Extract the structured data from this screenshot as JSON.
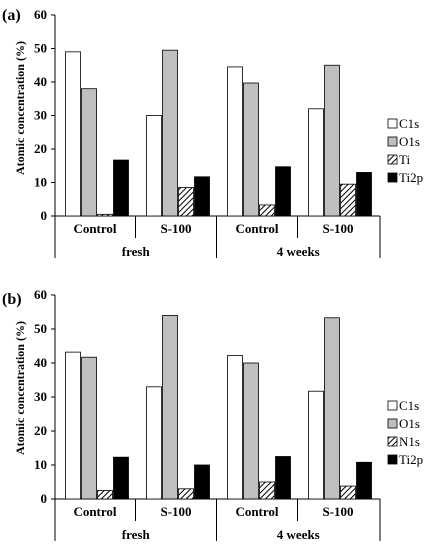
{
  "chart_data": [
    {
      "type": "bar",
      "panel_label": "(a)",
      "ylabel": "Atomic concentration (%)",
      "ylim": [
        0,
        60
      ],
      "yticks": [
        "0",
        "10",
        "20",
        "30",
        "40",
        "50",
        "60"
      ],
      "categories": [
        "Control",
        "S-100",
        "Control",
        "S-100"
      ],
      "groups": [
        "fresh",
        "4 weeks"
      ],
      "legend_position": "right",
      "series": [
        {
          "name": "C1s",
          "pattern": "white",
          "values": [
            49,
            30,
            44.5,
            32
          ]
        },
        {
          "name": "O1s",
          "pattern": "gray",
          "values": [
            38,
            49.5,
            39.7,
            45
          ]
        },
        {
          "name": "Ti",
          "pattern": "hatch",
          "values": [
            0.5,
            8.5,
            3.3,
            9.5
          ]
        },
        {
          "name": "Ti2p",
          "pattern": "black",
          "values": [
            16.7,
            11.7,
            14.7,
            13
          ]
        }
      ]
    },
    {
      "type": "bar",
      "panel_label": "(b)",
      "ylabel": "Atomic concentration (%)",
      "ylim": [
        0,
        60
      ],
      "yticks": [
        "0",
        "10",
        "20",
        "30",
        "40",
        "50",
        "60"
      ],
      "categories": [
        "Control",
        "S-100",
        "Control",
        "S-100"
      ],
      "groups": [
        "fresh",
        "4 weeks"
      ],
      "legend_position": "right",
      "series": [
        {
          "name": "C1s",
          "pattern": "white",
          "values": [
            43.2,
            33,
            42.2,
            31.7
          ]
        },
        {
          "name": "O1s",
          "pattern": "gray",
          "values": [
            41.7,
            54,
            40,
            53.3
          ]
        },
        {
          "name": "N1s",
          "pattern": "hatch",
          "values": [
            2.5,
            3,
            5,
            3.8
          ]
        },
        {
          "name": "Ti2p",
          "pattern": "black",
          "values": [
            12.3,
            10,
            12.5,
            10.8
          ]
        }
      ]
    }
  ],
  "colors": {
    "white": "#ffffff",
    "gray": "#bfbfbf",
    "black": "#000000",
    "outline": "#000000"
  }
}
